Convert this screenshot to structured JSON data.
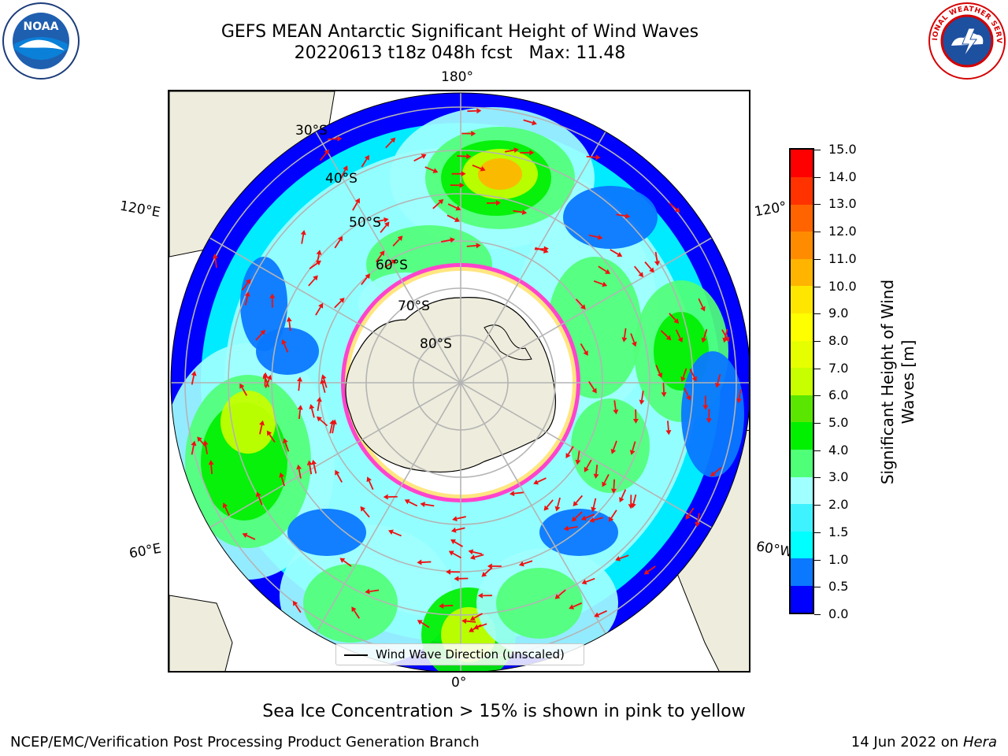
{
  "header": {
    "title_line1": "GEFS MEAN Antarctic Significant Height of Wind Waves",
    "title_line2": "20220613 t18z 048h fcst   Max: 11.48"
  },
  "logos": {
    "left": {
      "name": "noaa-logo",
      "text": "NOAA"
    },
    "right": {
      "name": "nws-logo",
      "text": "NATIONAL WEATHER SERVICE"
    }
  },
  "map": {
    "projection": "south-polar-stereographic",
    "longitude_labels": {
      "top": "180°",
      "bottom": "0°",
      "left_upper": "120°E",
      "left_lower": "60°E",
      "right_upper": "120°",
      "right_lower": "60°W"
    },
    "latitude_labels": [
      "30°S",
      "40°S",
      "50°S",
      "60°S",
      "70°S",
      "80°S"
    ],
    "land_color": "#eeecdc",
    "grid_color": "#b4b4b4",
    "arrow_color": "#ee1111",
    "ice_edge_colors": [
      "#ff44cc",
      "#ffe680"
    ]
  },
  "legend": {
    "line_label": "Wind Wave Direction (unscaled)"
  },
  "colorbar": {
    "title": "Significant Height of Wind Waves [m]",
    "tick_labels": [
      "0.0",
      "0.5",
      "1.0",
      "1.5",
      "2.0",
      "3.0",
      "4.0",
      "5.0",
      "6.0",
      "7.0",
      "8.0",
      "9.0",
      "10.0",
      "11.0",
      "12.0",
      "13.0",
      "14.0",
      "15.0"
    ],
    "colors": [
      "#0000ff",
      "#0a78ff",
      "#00ffff",
      "#3ff2ff",
      "#a0ffff",
      "#50ff78",
      "#00f000",
      "#5ae600",
      "#c8ff00",
      "#e6ff00",
      "#ffff00",
      "#ffe600",
      "#ffb400",
      "#ff8c00",
      "#ff6400",
      "#ff3200",
      "#ff0000"
    ]
  },
  "subtitle": "Sea Ice Concentration > 15% is shown in pink to yellow",
  "footer": {
    "left": "NCEP/EMC/Verification Post Processing Product Generation Branch",
    "right_date": "14 Jun 2022 on",
    "right_machine": "Hera"
  }
}
